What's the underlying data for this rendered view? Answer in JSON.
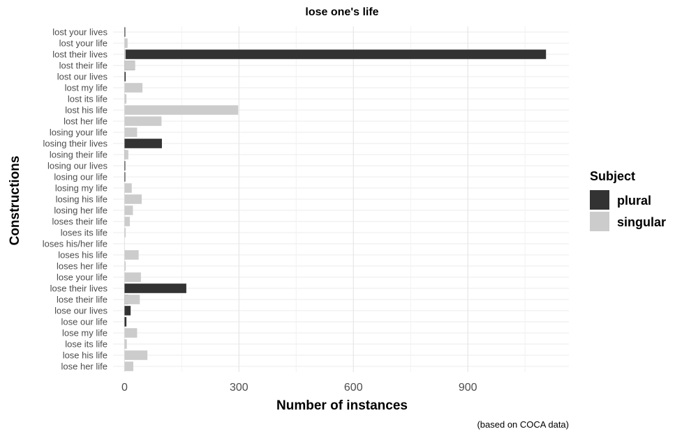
{
  "chart_data": {
    "type": "bar",
    "orientation": "horizontal",
    "title": "lose one's life",
    "xlabel": "Number of instances",
    "ylabel": "Constructions",
    "caption": "(based on COCA data)",
    "x_ticks": [
      "0",
      "300",
      "600",
      "900"
    ],
    "xlim": [
      -30,
      1165
    ],
    "grid": true,
    "legend": {
      "title": "Subject",
      "position": "right",
      "entries": [
        {
          "name": "plural",
          "color": "#333333"
        },
        {
          "name": "singular",
          "color": "#cccccc"
        }
      ]
    },
    "categories": [
      "lost your lives",
      "lost your life",
      "lost their lives",
      "lost their life",
      "lost our lives",
      "lost my life",
      "lost its life",
      "lost his life",
      "lost her life",
      "losing your life",
      "losing their lives",
      "losing their life",
      "losing our lives",
      "losing our life",
      "losing my life",
      "losing his life",
      "losing her life",
      "loses their life",
      "loses its life",
      "loses his/her life",
      "loses his life",
      "loses her life",
      "lose your life",
      "lose their lives",
      "lose their life",
      "lose our lives",
      "lose our life",
      "lose my life",
      "lose its life",
      "lose his life",
      "lose her life"
    ],
    "series": [
      {
        "name": "plural",
        "color": "#333333",
        "values": [
          2,
          0,
          1105,
          27,
          3,
          0,
          0,
          0,
          0,
          0,
          98,
          2,
          2,
          2,
          0,
          0,
          0,
          0,
          0,
          0,
          0,
          0,
          0,
          162,
          10,
          16,
          5,
          0,
          0,
          0,
          0
        ]
      },
      {
        "name": "singular",
        "color": "#cccccc",
        "values": [
          0,
          8,
          3,
          28,
          0,
          47,
          5,
          298,
          97,
          33,
          0,
          10,
          0,
          0,
          19,
          45,
          22,
          14,
          3,
          0,
          37,
          3,
          43,
          0,
          40,
          0,
          0,
          33,
          6,
          60,
          23
        ]
      }
    ]
  }
}
